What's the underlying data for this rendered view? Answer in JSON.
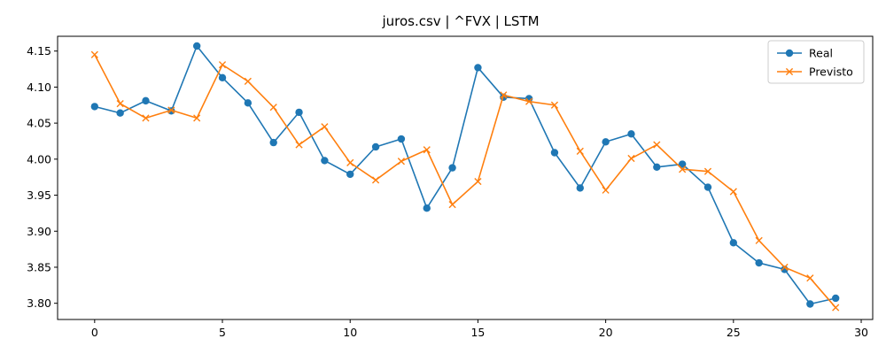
{
  "chart_data": {
    "type": "line",
    "title": "juros.csv | ^FVX | LSTM",
    "xlabel": "",
    "ylabel": "",
    "xlim": [
      -1.45,
      30.45
    ],
    "ylim": [
      3.7775,
      4.1705
    ],
    "xticks": [
      0,
      5,
      10,
      15,
      20,
      25,
      30
    ],
    "xtick_labels": [
      "0",
      "5",
      "10",
      "15",
      "20",
      "25",
      "30"
    ],
    "yticks": [
      3.8,
      3.85,
      3.9,
      3.95,
      4.0,
      4.05,
      4.1,
      4.15
    ],
    "ytick_labels": [
      "3.80",
      "3.85",
      "3.90",
      "3.95",
      "4.00",
      "4.05",
      "4.10",
      "4.15"
    ],
    "grid": false,
    "legend_position": "top-right",
    "x": [
      0,
      1,
      2,
      3,
      4,
      5,
      6,
      7,
      8,
      9,
      10,
      11,
      12,
      13,
      14,
      15,
      16,
      17,
      18,
      19,
      20,
      21,
      22,
      23,
      24,
      25,
      26,
      27,
      28,
      29
    ],
    "series": [
      {
        "name": "Real",
        "color": "#1f77b4",
        "marker": "circle",
        "values": [
          4.073,
          4.064,
          4.081,
          4.067,
          4.157,
          4.113,
          4.078,
          4.023,
          4.065,
          3.998,
          3.979,
          4.017,
          4.028,
          3.932,
          3.988,
          4.127,
          4.086,
          4.084,
          4.009,
          3.96,
          4.024,
          4.035,
          3.989,
          3.993,
          3.961,
          3.884,
          3.856,
          3.847,
          3.799,
          3.807
        ]
      },
      {
        "name": "Previsto",
        "color": "#ff7f0e",
        "marker": "x",
        "values": [
          4.145,
          4.077,
          4.057,
          4.068,
          4.057,
          4.131,
          4.108,
          4.072,
          4.02,
          4.045,
          3.995,
          3.971,
          3.997,
          4.013,
          3.937,
          3.969,
          4.089,
          4.08,
          4.075,
          4.011,
          3.957,
          4.001,
          4.02,
          3.986,
          3.983,
          3.955,
          3.887,
          3.85,
          3.835,
          3.794
        ]
      }
    ]
  }
}
